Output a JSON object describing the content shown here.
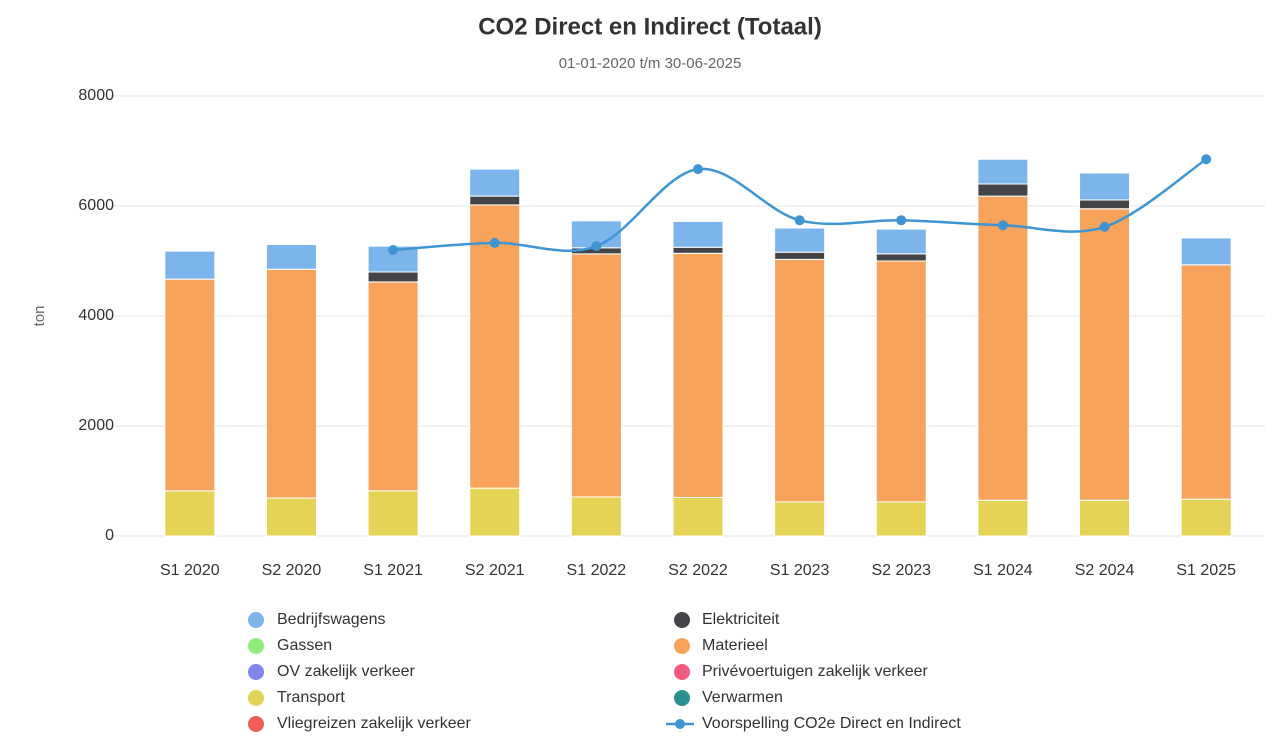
{
  "chart_data": {
    "type": "bar",
    "stacked": true,
    "title": "CO2 Direct en Indirect (Totaal)",
    "subtitle": "01-01-2020 t/m 30-06-2025",
    "y_label": "ton",
    "categories": [
      "S1 2020",
      "S2 2020",
      "S1 2021",
      "S2 2021",
      "S1 2022",
      "S2 2022",
      "S1 2023",
      "S2 2023",
      "S1 2024",
      "S2 2024",
      "S1 2025"
    ],
    "ylim": [
      0,
      8000
    ],
    "yticks": [
      0,
      2000,
      4000,
      6000,
      8000
    ],
    "grid": true,
    "series": [
      {
        "name": "Bedrijfswagens",
        "color": "#7cb5ec",
        "values": [
          510,
          450,
          470,
          490,
          490,
          470,
          440,
          450,
          450,
          490,
          490
        ]
      },
      {
        "name": "Elektriciteit",
        "color": "#434348",
        "values": [
          0,
          0,
          180,
          160,
          110,
          110,
          130,
          130,
          220,
          160,
          0
        ]
      },
      {
        "name": "Gassen",
        "color": "#90ed7d",
        "values": [
          0,
          0,
          0,
          0,
          0,
          0,
          0,
          0,
          0,
          0,
          0
        ]
      },
      {
        "name": "Materieel",
        "color": "#f7a35c",
        "values": [
          3850,
          4160,
          3800,
          5150,
          4420,
          4440,
          4410,
          4380,
          5530,
          5300,
          4260
        ]
      },
      {
        "name": "OV zakelijk verkeer",
        "color": "#8085e9",
        "values": [
          0,
          0,
          0,
          0,
          0,
          0,
          0,
          0,
          0,
          0,
          0
        ]
      },
      {
        "name": "Privévoertuigen zakelijk verkeer",
        "color": "#f15c80",
        "values": [
          0,
          0,
          0,
          0,
          0,
          0,
          0,
          0,
          0,
          0,
          0
        ]
      },
      {
        "name": "Transport",
        "color": "#e4d354",
        "values": [
          820,
          690,
          820,
          870,
          710,
          700,
          620,
          620,
          650,
          650,
          670
        ]
      },
      {
        "name": "Verwarmen",
        "color": "#2b908f",
        "values": [
          0,
          0,
          0,
          0,
          0,
          0,
          0,
          0,
          0,
          0,
          0
        ]
      },
      {
        "name": "Vliegreizen zakelijk verkeer",
        "color": "#f45b5b",
        "values": [
          0,
          0,
          0,
          0,
          0,
          0,
          0,
          0,
          0,
          0,
          0
        ]
      },
      {
        "name": "Voorspelling CO2e Direct en Indirect",
        "color": "#3d96d2",
        "type": "line",
        "values": [
          null,
          null,
          5200,
          5330,
          5270,
          6670,
          5740,
          5740,
          5650,
          5620,
          6850
        ]
      }
    ]
  }
}
